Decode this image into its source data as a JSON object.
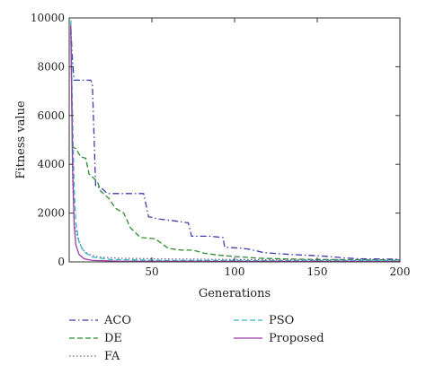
{
  "chart_data": {
    "type": "line",
    "title": "",
    "xlabel": "Generations",
    "ylabel": "Fitness value",
    "xlim": [
      0,
      200
    ],
    "ylim": [
      0,
      10000
    ],
    "xticks": [
      50,
      100,
      150,
      200
    ],
    "yticks": [
      0,
      2000,
      4000,
      6000,
      8000,
      10000
    ],
    "grid": false,
    "legend_position": "below",
    "series": [
      {
        "name": "ACO",
        "color": "#3b3bb3",
        "dash": "dashdot",
        "points": [
          [
            1,
            9600
          ],
          [
            2,
            8200
          ],
          [
            3,
            7450
          ],
          [
            13,
            7450
          ],
          [
            14,
            7300
          ],
          [
            16,
            3100
          ],
          [
            20,
            3000
          ],
          [
            23,
            2800
          ],
          [
            45,
            2800
          ],
          [
            48,
            1850
          ],
          [
            55,
            1750
          ],
          [
            62,
            1700
          ],
          [
            72,
            1600
          ],
          [
            74,
            1050
          ],
          [
            85,
            1050
          ],
          [
            93,
            1000
          ],
          [
            94,
            600
          ],
          [
            103,
            570
          ],
          [
            108,
            530
          ],
          [
            118,
            380
          ],
          [
            128,
            330
          ],
          [
            135,
            300
          ],
          [
            145,
            270
          ],
          [
            155,
            230
          ],
          [
            165,
            170
          ],
          [
            175,
            130
          ],
          [
            200,
            110
          ]
        ]
      },
      {
        "name": "DE",
        "color": "#2e8b2e",
        "dash": "dashed",
        "points": [
          [
            1,
            9400
          ],
          [
            2,
            4700
          ],
          [
            4,
            4650
          ],
          [
            7,
            4300
          ],
          [
            10,
            4250
          ],
          [
            12,
            3600
          ],
          [
            17,
            3300
          ],
          [
            19,
            2900
          ],
          [
            24,
            2600
          ],
          [
            28,
            2200
          ],
          [
            33,
            2000
          ],
          [
            37,
            1400
          ],
          [
            43,
            1000
          ],
          [
            52,
            950
          ],
          [
            60,
            550
          ],
          [
            68,
            480
          ],
          [
            75,
            480
          ],
          [
            82,
            350
          ],
          [
            90,
            280
          ],
          [
            100,
            220
          ],
          [
            115,
            150
          ],
          [
            130,
            120
          ],
          [
            150,
            100
          ],
          [
            200,
            80
          ]
        ]
      },
      {
        "name": "FA",
        "color": "#6a6a9a",
        "dash": "dotted",
        "points": [
          [
            1,
            9800
          ],
          [
            2,
            3500
          ],
          [
            3,
            1600
          ],
          [
            5,
            1000
          ],
          [
            8,
            500
          ],
          [
            12,
            300
          ],
          [
            18,
            200
          ],
          [
            30,
            150
          ],
          [
            60,
            120
          ],
          [
            100,
            100
          ],
          [
            200,
            80
          ]
        ]
      },
      {
        "name": "PSO",
        "color": "#33b5c5",
        "dash": "dashed",
        "points": [
          [
            1,
            9900
          ],
          [
            2,
            6000
          ],
          [
            3,
            3000
          ],
          [
            4,
            1600
          ],
          [
            6,
            800
          ],
          [
            9,
            400
          ],
          [
            14,
            200
          ],
          [
            25,
            100
          ],
          [
            60,
            60
          ],
          [
            200,
            50
          ]
        ]
      },
      {
        "name": "Proposed",
        "color": "#9b3fa5",
        "dash": "solid",
        "points": [
          [
            1,
            9700
          ],
          [
            2,
            4000
          ],
          [
            3,
            1500
          ],
          [
            4,
            700
          ],
          [
            6,
            300
          ],
          [
            9,
            130
          ],
          [
            14,
            60
          ],
          [
            30,
            30
          ],
          [
            200,
            20
          ]
        ]
      }
    ]
  }
}
